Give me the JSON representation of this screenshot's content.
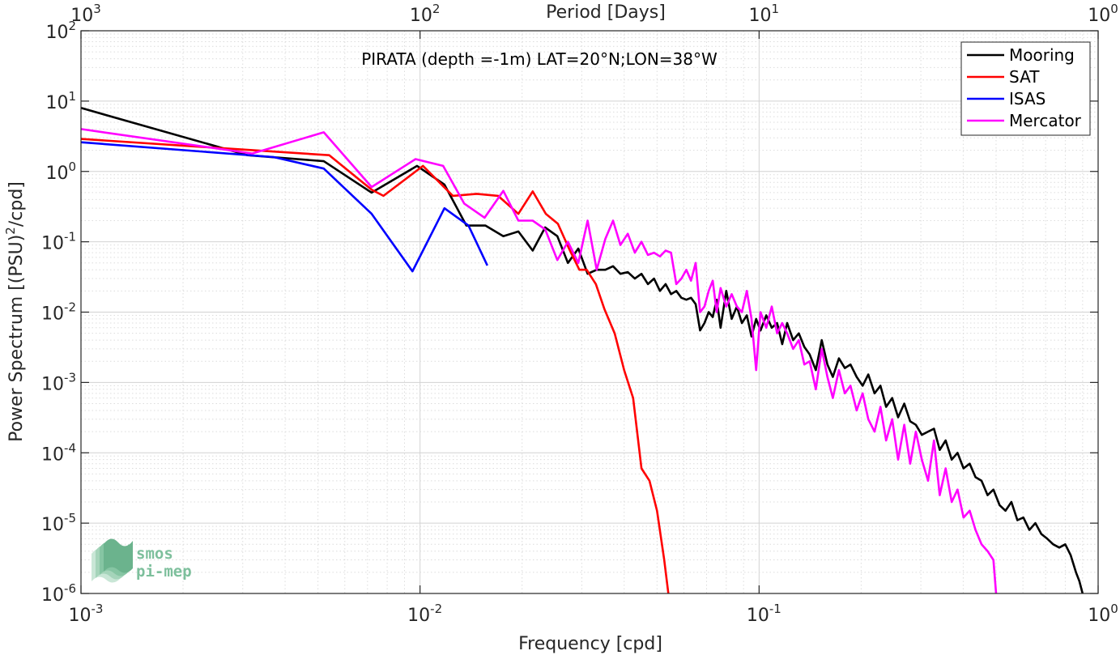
{
  "chart_data": {
    "type": "line",
    "title": "PIRATA (depth =-1m) LAT=20°N;LON=38°W",
    "xlabel": "Frequency [cpd]",
    "ylabel": "Power Spectrum [(PSU)²/cpd]",
    "ylabel_parts": {
      "base": "Power Spectrum [(PSU)",
      "sup": "2",
      "end": "/cpd]"
    },
    "x2label": "Period [Days]",
    "xscale": "log",
    "yscale": "log",
    "xlim": [
      0.001,
      1
    ],
    "ylim": [
      1e-06,
      100
    ],
    "grid": true,
    "legend_position": "top-right",
    "x_ticks": [
      {
        "base": "10",
        "exp": "-3"
      },
      {
        "base": "10",
        "exp": "-2"
      },
      {
        "base": "10",
        "exp": "-1"
      },
      {
        "base": "10",
        "exp": "0"
      }
    ],
    "x2_ticks": [
      {
        "base": "10",
        "exp": "3"
      },
      {
        "base": "10",
        "exp": "2"
      },
      {
        "base": "10",
        "exp": "1"
      },
      {
        "base": "10",
        "exp": "0"
      }
    ],
    "y_ticks": [
      {
        "base": "10",
        "exp": "2"
      },
      {
        "base": "10",
        "exp": "1"
      },
      {
        "base": "10",
        "exp": "0"
      },
      {
        "base": "10",
        "exp": "-1"
      },
      {
        "base": "10",
        "exp": "-2"
      },
      {
        "base": "10",
        "exp": "-3"
      },
      {
        "base": "10",
        "exp": "-4"
      },
      {
        "base": "10",
        "exp": "-5"
      },
      {
        "base": "10",
        "exp": "-6"
      }
    ],
    "series": [
      {
        "name": "Mooring",
        "color": "#000000",
        "x": [
          0.001,
          0.0031,
          0.0052,
          0.0072,
          0.0098,
          0.0118,
          0.0137,
          0.0156,
          0.0176,
          0.0195,
          0.0215,
          0.0234,
          0.0254,
          0.0273,
          0.0293,
          0.0312,
          0.0332,
          0.0352,
          0.0371,
          0.039,
          0.041,
          0.043,
          0.045,
          0.047,
          0.049,
          0.051,
          0.053,
          0.055,
          0.057,
          0.059,
          0.061,
          0.063,
          0.065,
          0.067,
          0.069,
          0.071,
          0.073,
          0.075,
          0.077,
          0.08,
          0.083,
          0.086,
          0.089,
          0.092,
          0.095,
          0.098,
          0.101,
          0.105,
          0.109,
          0.113,
          0.117,
          0.121,
          0.126,
          0.131,
          0.136,
          0.141,
          0.147,
          0.153,
          0.159,
          0.165,
          0.172,
          0.179,
          0.186,
          0.194,
          0.202,
          0.21,
          0.219,
          0.228,
          0.237,
          0.247,
          0.257,
          0.268,
          0.279,
          0.29,
          0.302,
          0.315,
          0.328,
          0.341,
          0.355,
          0.37,
          0.385,
          0.401,
          0.418,
          0.435,
          0.453,
          0.472,
          0.491,
          0.512,
          0.533,
          0.555,
          0.578,
          0.602,
          0.627,
          0.653,
          0.68,
          0.708,
          0.737,
          0.768,
          0.8,
          0.83,
          0.86,
          0.88,
          0.9
        ],
        "values": [
          8.0,
          1.7,
          1.4,
          0.5,
          1.2,
          0.65,
          0.17,
          0.17,
          0.12,
          0.14,
          0.075,
          0.16,
          0.12,
          0.05,
          0.08,
          0.035,
          0.04,
          0.04,
          0.045,
          0.035,
          0.037,
          0.03,
          0.035,
          0.025,
          0.03,
          0.02,
          0.025,
          0.018,
          0.02,
          0.016,
          0.015,
          0.016,
          0.013,
          0.0055,
          0.007,
          0.01,
          0.0085,
          0.015,
          0.006,
          0.02,
          0.008,
          0.012,
          0.007,
          0.009,
          0.0045,
          0.008,
          0.0055,
          0.009,
          0.006,
          0.007,
          0.0035,
          0.007,
          0.004,
          0.005,
          0.0032,
          0.0025,
          0.0015,
          0.004,
          0.0018,
          0.0012,
          0.0022,
          0.0016,
          0.0018,
          0.0012,
          0.0009,
          0.0013,
          0.0007,
          0.0009,
          0.00045,
          0.0006,
          0.00032,
          0.0005,
          0.00028,
          0.00025,
          0.00018,
          0.0002,
          0.00022,
          0.00011,
          0.00015,
          8e-05,
          0.0001,
          6e-05,
          7e-05,
          4.5e-05,
          4e-05,
          2.5e-05,
          3e-05,
          1.8e-05,
          1.5e-05,
          2e-05,
          1.1e-05,
          1.2e-05,
          8e-06,
          1e-05,
          7e-06,
          6e-06,
          5e-06,
          4.5e-06,
          5e-06,
          3.5e-06,
          2e-06,
          1.5e-06,
          1e-06
        ]
      },
      {
        "name": "SAT",
        "color": "#ff0000",
        "x": [
          0.001,
          0.0054,
          0.0072,
          0.0078,
          0.0102,
          0.0125,
          0.0147,
          0.017,
          0.0195,
          0.0215,
          0.0235,
          0.0255,
          0.0275,
          0.0295,
          0.031,
          0.033,
          0.035,
          0.0375,
          0.04,
          0.0425,
          0.045,
          0.0475,
          0.05,
          0.0525,
          0.054
        ],
        "values": [
          2.9,
          1.7,
          0.55,
          0.45,
          1.2,
          0.45,
          0.48,
          0.45,
          0.25,
          0.52,
          0.25,
          0.18,
          0.08,
          0.04,
          0.04,
          0.025,
          0.011,
          0.005,
          0.0015,
          0.0006,
          6e-05,
          4e-05,
          1.5e-05,
          3e-06,
          1e-06
        ]
      },
      {
        "name": "ISAS",
        "color": "#0000ff",
        "x": [
          0.001,
          0.0037,
          0.0052,
          0.0072,
          0.0095,
          0.0118,
          0.0139,
          0.0158
        ],
        "values": [
          2.6,
          1.6,
          1.1,
          0.25,
          0.038,
          0.3,
          0.17,
          0.046
        ]
      },
      {
        "name": "Mercator",
        "color": "#ff00ff",
        "x": [
          0.001,
          0.0032,
          0.0052,
          0.0072,
          0.0097,
          0.0117,
          0.0135,
          0.0155,
          0.0176,
          0.0195,
          0.0215,
          0.0234,
          0.0254,
          0.0273,
          0.0293,
          0.0312,
          0.0332,
          0.0352,
          0.0371,
          0.039,
          0.041,
          0.043,
          0.045,
          0.047,
          0.049,
          0.051,
          0.053,
          0.055,
          0.057,
          0.059,
          0.061,
          0.063,
          0.065,
          0.067,
          0.069,
          0.071,
          0.073,
          0.075,
          0.077,
          0.08,
          0.083,
          0.086,
          0.089,
          0.092,
          0.095,
          0.098,
          0.101,
          0.105,
          0.109,
          0.113,
          0.117,
          0.121,
          0.126,
          0.131,
          0.136,
          0.141,
          0.147,
          0.153,
          0.159,
          0.165,
          0.172,
          0.179,
          0.186,
          0.194,
          0.202,
          0.21,
          0.219,
          0.228,
          0.237,
          0.247,
          0.257,
          0.268,
          0.279,
          0.29,
          0.302,
          0.315,
          0.328,
          0.341,
          0.355,
          0.37,
          0.385,
          0.401,
          0.418,
          0.435,
          0.453,
          0.472,
          0.491,
          0.5
        ],
        "values": [
          4.0,
          1.8,
          3.6,
          0.6,
          1.5,
          1.2,
          0.35,
          0.22,
          0.53,
          0.2,
          0.2,
          0.15,
          0.055,
          0.1,
          0.05,
          0.2,
          0.04,
          0.11,
          0.2,
          0.09,
          0.13,
          0.07,
          0.1,
          0.065,
          0.07,
          0.062,
          0.075,
          0.07,
          0.025,
          0.03,
          0.04,
          0.028,
          0.05,
          0.01,
          0.012,
          0.02,
          0.028,
          0.01,
          0.022,
          0.012,
          0.018,
          0.012,
          0.01,
          0.02,
          0.008,
          0.0015,
          0.01,
          0.006,
          0.012,
          0.005,
          0.007,
          0.005,
          0.003,
          0.004,
          0.0018,
          0.002,
          0.0008,
          0.003,
          0.0012,
          0.0006,
          0.0015,
          0.0007,
          0.0009,
          0.0004,
          0.0007,
          0.0003,
          0.0002,
          0.00045,
          0.00015,
          0.0003,
          8e-05,
          0.00025,
          7e-05,
          0.0002,
          8e-05,
          4e-05,
          0.00015,
          2.5e-05,
          6e-05,
          2e-05,
          3e-05,
          1.2e-05,
          1.5e-05,
          8e-06,
          5e-06,
          4e-06,
          3e-06,
          1e-06
        ]
      }
    ]
  },
  "logo": {
    "line1": "smos",
    "line2": "pi-mep"
  }
}
